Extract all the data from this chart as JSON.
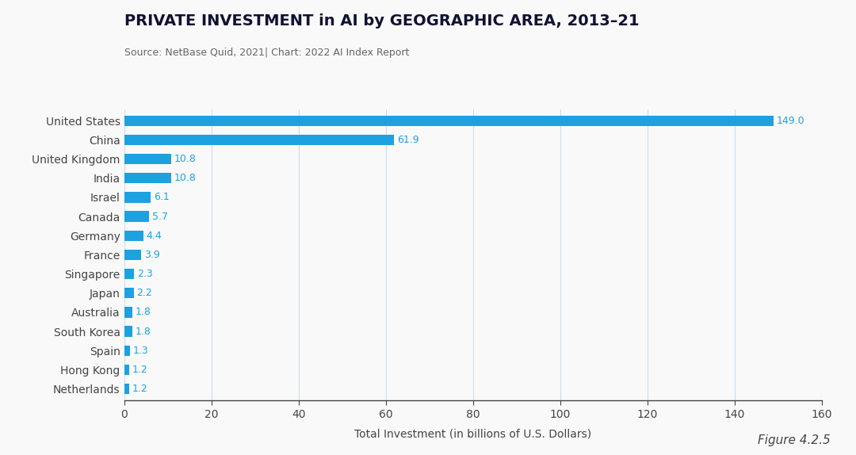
{
  "title": "PRIVATE INVESTMENT in AI by GEOGRAPHIC AREA, 2013–21",
  "source": "Source: NetBase Quid, 2021| Chart: 2022 AI Index Report",
  "figure_label": "Figure 4.2.5",
  "xlabel": "Total Investment (in billions of U.S. Dollars)",
  "countries": [
    "United States",
    "China",
    "United Kingdom",
    "India",
    "Israel",
    "Canada",
    "Germany",
    "France",
    "Singapore",
    "Japan",
    "Australia",
    "South Korea",
    "Spain",
    "Hong Kong",
    "Netherlands"
  ],
  "values": [
    149.0,
    61.9,
    10.8,
    10.8,
    6.1,
    5.7,
    4.4,
    3.9,
    2.3,
    2.2,
    1.8,
    1.8,
    1.3,
    1.2,
    1.2
  ],
  "bar_color": "#1da1e0",
  "label_color": "#1da1e0",
  "background_color": "#f9f9f9",
  "grid_color": "#d0dce8",
  "axis_color": "#444444",
  "title_color": "#111133",
  "source_color": "#666666",
  "figure_label_color": "#444444",
  "xlim": [
    0,
    160
  ],
  "xticks": [
    0,
    20,
    40,
    60,
    80,
    100,
    120,
    140,
    160
  ],
  "bar_height": 0.55,
  "title_fontsize": 14,
  "source_fontsize": 9,
  "label_fontsize": 9,
  "tick_fontsize": 10,
  "xlabel_fontsize": 10,
  "figure_label_fontsize": 11
}
